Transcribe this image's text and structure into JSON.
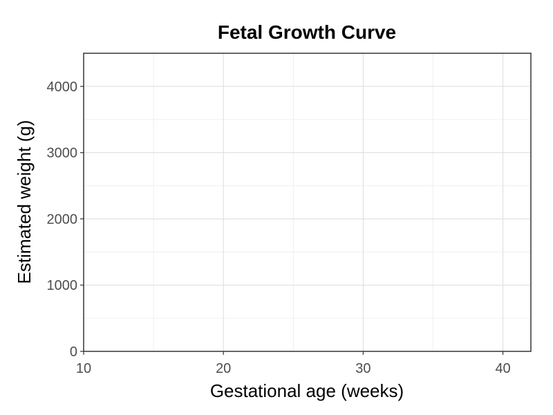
{
  "chart_data": {
    "type": "line",
    "title": "Fetal Growth Curve",
    "xlabel": "Gestational age (weeks)",
    "ylabel": "Estimated weight (g)",
    "xlim": [
      10,
      42
    ],
    "ylim": [
      0,
      4500
    ],
    "x_ticks": [
      10,
      20,
      30,
      40
    ],
    "x_tick_labels": [
      "10",
      "20",
      "30",
      "40"
    ],
    "x_minor_ticks": [
      15,
      25,
      35
    ],
    "y_ticks": [
      0,
      1000,
      2000,
      3000,
      4000
    ],
    "y_tick_labels": [
      "0",
      "1000",
      "2000",
      "3000",
      "4000"
    ],
    "y_minor_ticks": [
      500,
      1500,
      2500,
      3500
    ],
    "grid": true,
    "series": []
  }
}
